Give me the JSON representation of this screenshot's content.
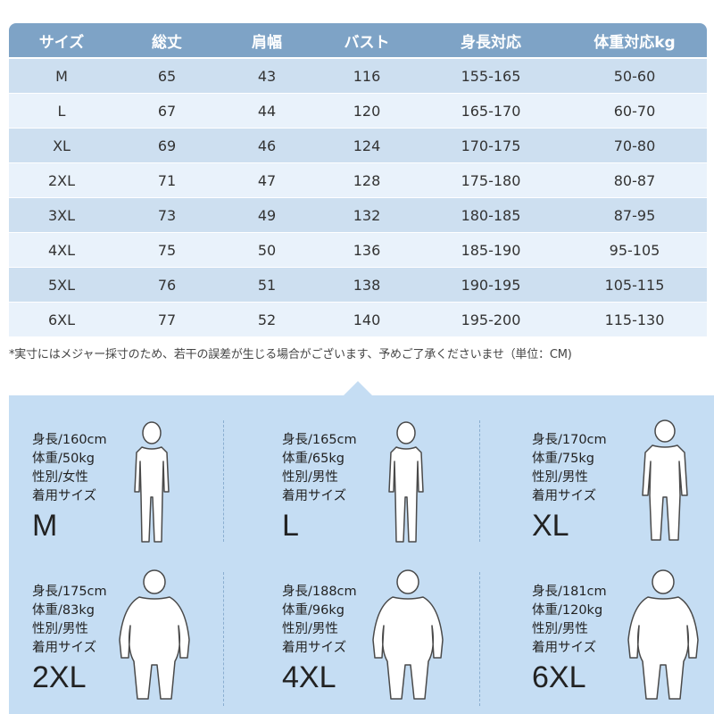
{
  "table": {
    "headers": [
      "サイズ",
      "総丈",
      "肩幅",
      "バスト",
      "身長対応",
      "体重対応kg"
    ],
    "rows": [
      [
        "M",
        "65",
        "43",
        "116",
        "155-165",
        "50-60"
      ],
      [
        "L",
        "67",
        "44",
        "120",
        "165-170",
        "60-70"
      ],
      [
        "XL",
        "69",
        "46",
        "124",
        "170-175",
        "70-80"
      ],
      [
        "2XL",
        "71",
        "47",
        "128",
        "175-180",
        "80-87"
      ],
      [
        "3XL",
        "73",
        "49",
        "132",
        "180-185",
        "87-95"
      ],
      [
        "4XL",
        "75",
        "50",
        "136",
        "185-190",
        "95-105"
      ],
      [
        "5XL",
        "76",
        "51",
        "138",
        "190-195",
        "105-115"
      ],
      [
        "6XL",
        "77",
        "52",
        "140",
        "195-200",
        "115-130"
      ]
    ]
  },
  "footnote": "*実寸にはメジャー採寸のため、若干の誤差が生じる場合がございます、予めご了承くださいませ（単位：CM)",
  "models": [
    {
      "height": "身長/160cm",
      "weight": "体重/50kg",
      "gender": "性別/女性",
      "size_label": "着用サイズ",
      "size": "M"
    },
    {
      "height": "身長/165cm",
      "weight": "体重/65kg",
      "gender": "性別/男性",
      "size_label": "着用サイズ",
      "size": "L"
    },
    {
      "height": "身長/170cm",
      "weight": "体重/75kg",
      "gender": "性別/男性",
      "size_label": "着用サイズ",
      "size": "XL"
    },
    {
      "height": "身長/175cm",
      "weight": "体重/83kg",
      "gender": "性別/男性",
      "size_label": "着用サイズ",
      "size": "2XL"
    },
    {
      "height": "身長/188cm",
      "weight": "体重/96kg",
      "gender": "性別/男性",
      "size_label": "着用サイズ",
      "size": "4XL"
    },
    {
      "height": "身長/181cm",
      "weight": "体重/120kg",
      "gender": "性別/男性",
      "size_label": "着用サイズ",
      "size": "6XL"
    }
  ],
  "colors": {
    "header_bg": "#7ea3c6",
    "row_odd": "#cddff0",
    "row_even": "#e9f2fb",
    "panel_bg": "#c5ddf3"
  },
  "icons": [
    "body-silhouette-slim-icon",
    "body-silhouette-medium-icon",
    "body-silhouette-large-icon"
  ]
}
